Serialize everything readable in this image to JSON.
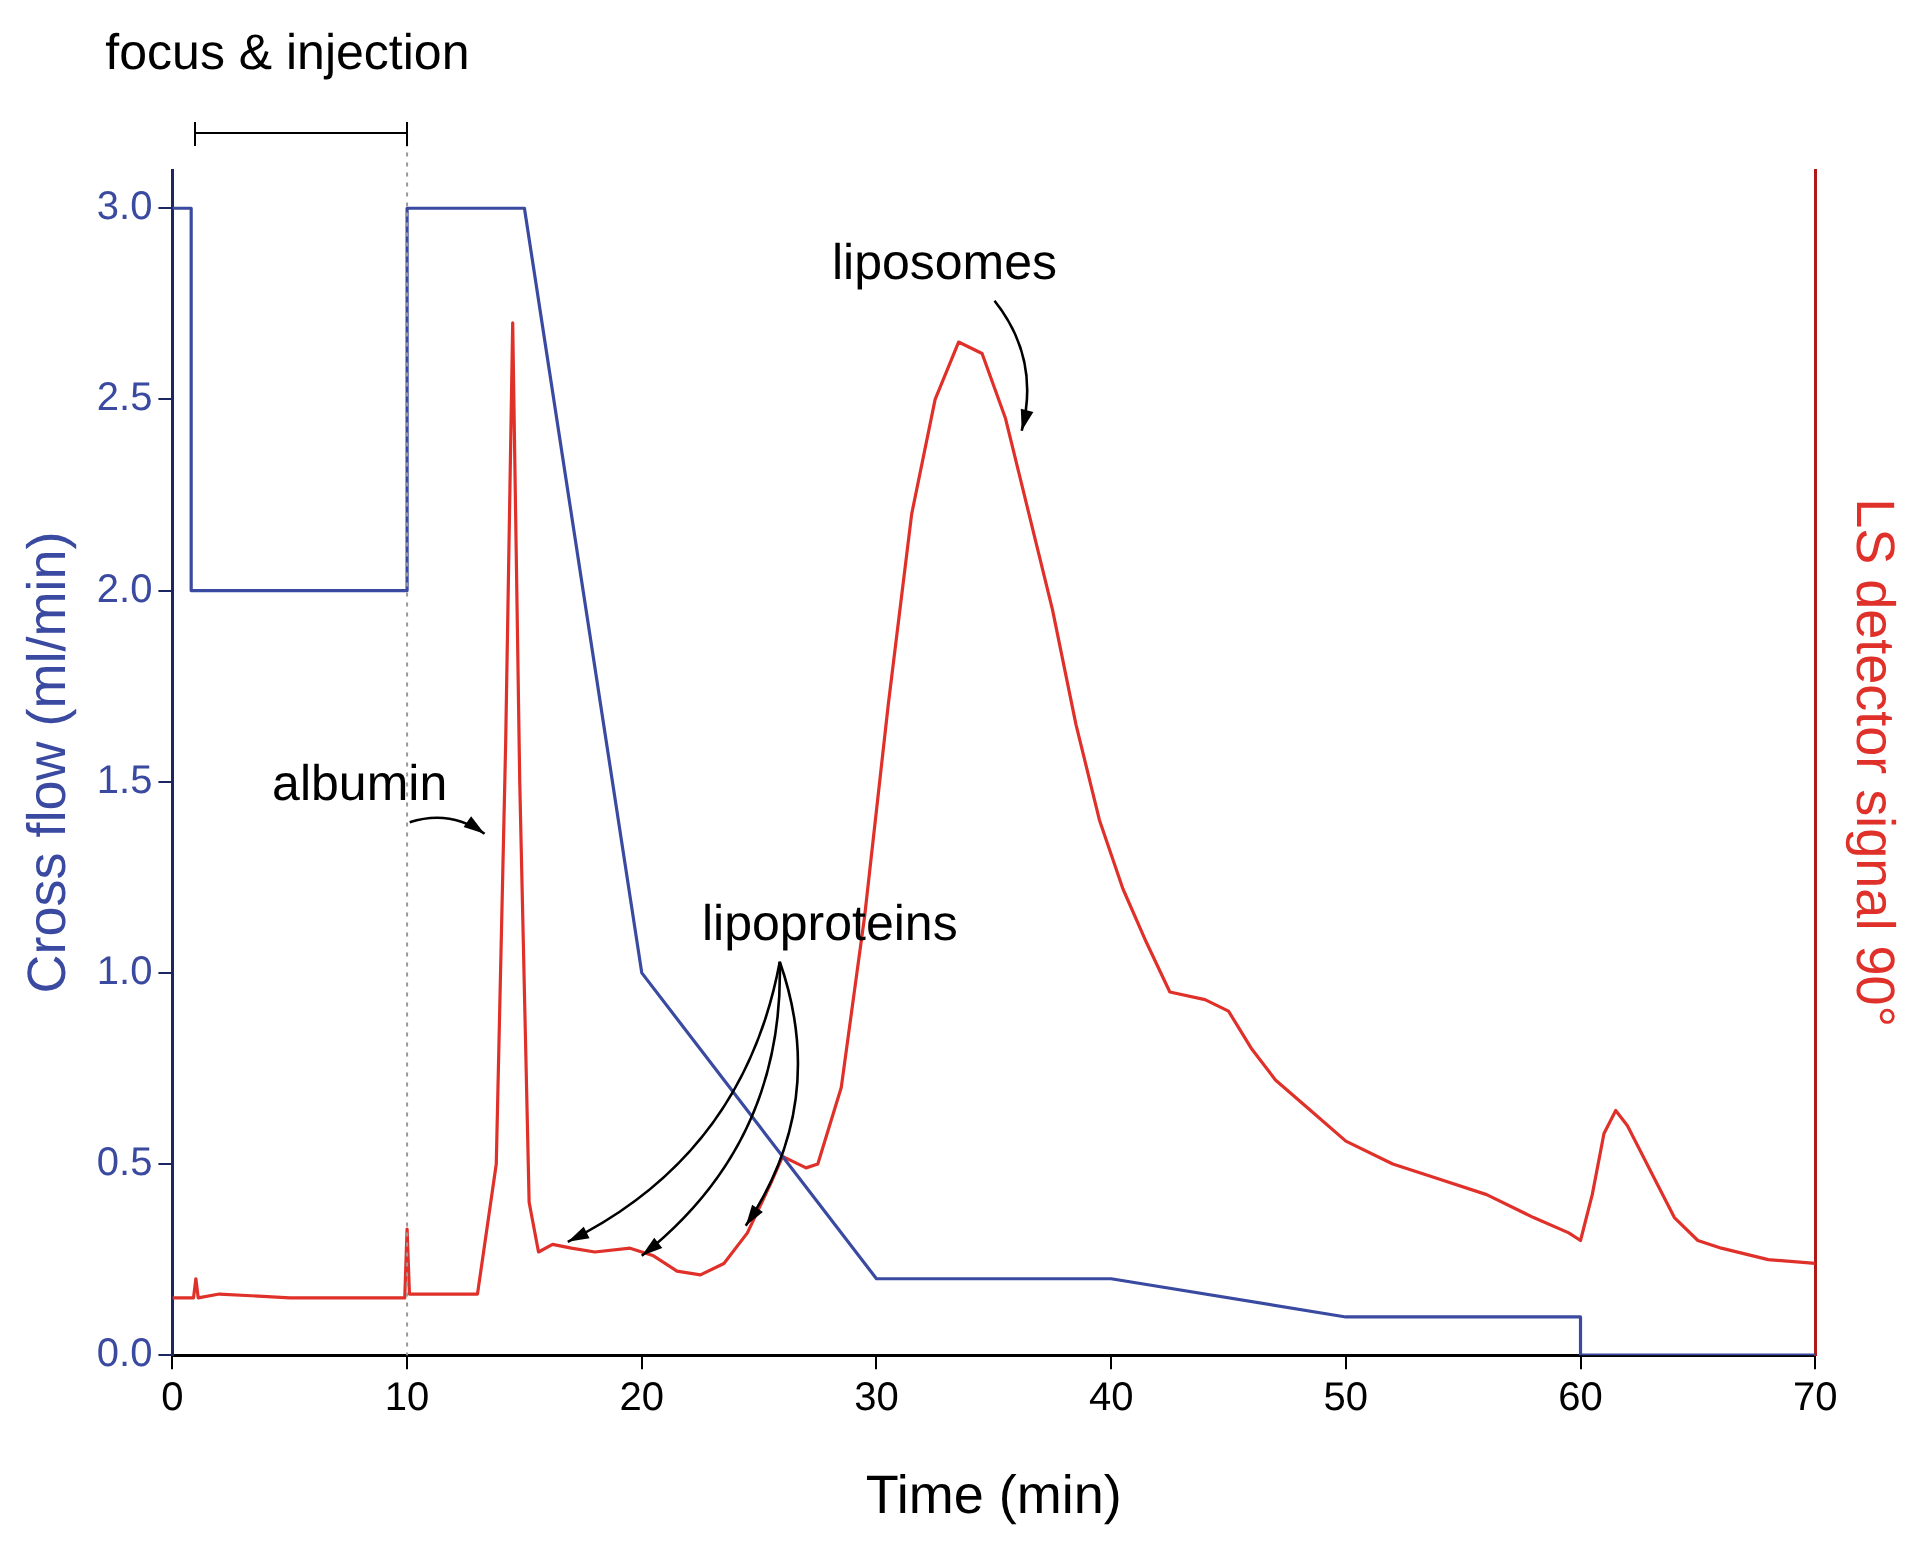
{
  "chart_data": {
    "type": "line",
    "xlabel": "Time (min)",
    "ylabel": "Cross flow (ml/min)",
    "y2label": "LS detector signal 90°",
    "xlim": [
      0,
      70
    ],
    "xticks": [
      0,
      10,
      20,
      30,
      40,
      50,
      60,
      70
    ],
    "ylim": [
      0,
      3.1
    ],
    "yticks": [
      {
        "value": 0,
        "label": "0.0"
      },
      {
        "value": 0.5,
        "label": "0.5"
      },
      {
        "value": 1,
        "label": "1.0"
      },
      {
        "value": 1.5,
        "label": "1.5"
      },
      {
        "value": 2,
        "label": "2.0"
      },
      {
        "value": 2.5,
        "label": "2.5"
      },
      {
        "value": 3,
        "label": "3.0"
      }
    ],
    "grid": false,
    "legend": false,
    "marker": "none",
    "line_style": "solid",
    "series": [
      {
        "color": "#3a4aa0",
        "x": [
          0,
          0.8,
          0.8,
          10,
          10,
          15,
          20,
          30,
          40,
          50,
          60,
          60,
          70
        ],
        "values": [
          3,
          3,
          2,
          2,
          3,
          3,
          1,
          0.2,
          0.2,
          0.1,
          0.1,
          0,
          0
        ]
      },
      {
        "color": "#e0302a",
        "x": [
          0,
          0.9,
          1,
          1.1,
          2,
          5,
          9.9,
          10,
          10.1,
          13,
          13.8,
          14.2,
          14.5,
          14.8,
          15.2,
          15.6,
          16.2,
          17,
          18,
          19.5,
          20.5,
          21.5,
          22.5,
          23.5,
          24.5,
          25.5,
          26,
          27,
          27.5,
          28.5,
          29.5,
          30.5,
          31.5,
          32.5,
          33.5,
          34.5,
          35.5,
          36.5,
          37.5,
          38.5,
          39.5,
          40.5,
          41.5,
          42.5,
          44,
          45,
          46,
          47,
          48.5,
          50,
          52,
          54,
          56,
          58,
          59.5,
          60,
          60.5,
          61,
          61.5,
          62,
          63,
          64,
          65,
          66,
          68,
          70
        ],
        "values": [
          0.15,
          0.15,
          0.2,
          0.15,
          0.16,
          0.15,
          0.15,
          0.33,
          0.16,
          0.16,
          0.5,
          1.6,
          2.7,
          1.5,
          0.4,
          0.27,
          0.29,
          0.28,
          0.27,
          0.28,
          0.26,
          0.22,
          0.21,
          0.24,
          0.32,
          0.45,
          0.52,
          0.49,
          0.5,
          0.7,
          1.15,
          1.7,
          2.2,
          2.5,
          2.65,
          2.62,
          2.45,
          2.2,
          1.95,
          1.65,
          1.4,
          1.22,
          1.08,
          0.95,
          0.93,
          0.9,
          0.8,
          0.72,
          0.64,
          0.56,
          0.5,
          0.46,
          0.42,
          0.36,
          0.32,
          0.3,
          0.42,
          0.58,
          0.64,
          0.6,
          0.48,
          0.36,
          0.3,
          0.28,
          0.25,
          0.24
        ]
      }
    ],
    "ref_lines": [
      {
        "axis": "x",
        "value": 10,
        "color": "#999999",
        "line_style": "dotted"
      }
    ],
    "annotations": [
      "focus & injection",
      "albumin",
      {
        "text": "lipoproteins",
        "x": 20,
        "y": 0.26
      },
      "liposomes"
    ]
  }
}
